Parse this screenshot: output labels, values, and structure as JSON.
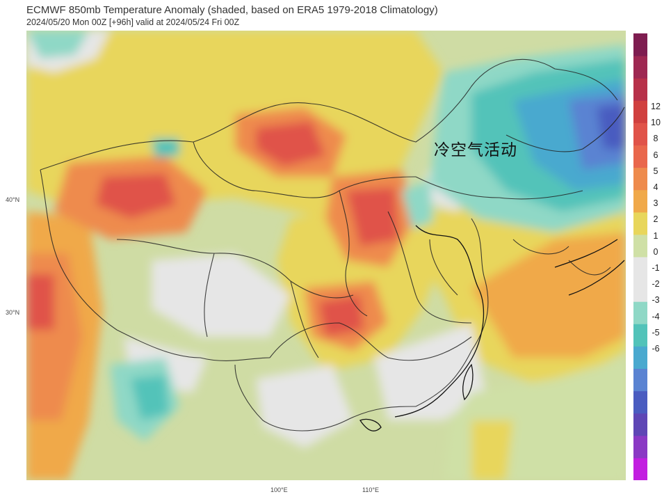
{
  "header": {
    "title": "ECMWF 850mb Temperature Anomaly (shaded, based on ERA5 1979-2018 Climatology)",
    "subtitle": "2024/05/20 Mon 00Z [+96h] valid at 2024/05/24 Fri 00Z"
  },
  "map": {
    "annotation": "冷空气活动",
    "lat_labels": [
      "40°N",
      "30°N"
    ],
    "lon_labels": [
      "100°E",
      "110°E"
    ]
  },
  "colorbar": {
    "labels": [
      "12",
      "10",
      "8",
      "6",
      "5",
      "4",
      "3",
      "2",
      "1",
      "0",
      "-1",
      "-2",
      "-3",
      "-4",
      "-5",
      "-6"
    ],
    "colors": [
      "#c21fe0",
      "#8a39c4",
      "#5e46b5",
      "#4a5cc0",
      "#5a83d2",
      "#4aa9cf",
      "#52c3b9",
      "#8fd8c6",
      "#e6e6e6",
      "#e6e6e6",
      "#cfe0a6",
      "#e8d65b",
      "#f0a94a",
      "#ee8b4d",
      "#e9674c",
      "#e05349",
      "#d0403f",
      "#b7314a",
      "#9e2852",
      "#7e1d50"
    ]
  }
}
